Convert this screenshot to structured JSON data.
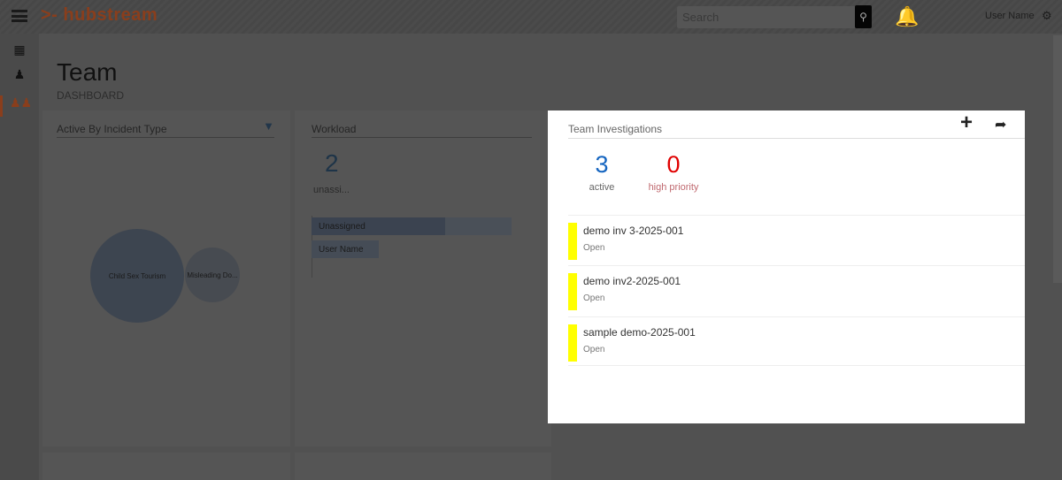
{
  "header": {
    "brand": "hubstream",
    "search_placeholder": "Search",
    "user_name": "User Name"
  },
  "page": {
    "title": "Team",
    "subtitle": "DASHBOARD"
  },
  "incident_panel": {
    "title": "Active By Incident Type",
    "bubbles": [
      {
        "label": "Child Sex Tourism"
      },
      {
        "label": "Misleading Do..."
      }
    ]
  },
  "workload_panel": {
    "title": "Workload",
    "count": "2",
    "count_label": "unassi...",
    "bars": [
      {
        "label": "Unassigned",
        "value": 2
      },
      {
        "label": "User Name",
        "value": 0
      }
    ]
  },
  "modal": {
    "title": "Team Investigations",
    "active_count": "3",
    "active_label": "active",
    "priority_count": "0",
    "priority_label": "high priority",
    "items": [
      {
        "name": "demo inv 3-2025-001",
        "status": "Open"
      },
      {
        "name": "demo inv2-2025-001",
        "status": "Open"
      },
      {
        "name": "sample demo-2025-001",
        "status": "Open"
      }
    ]
  },
  "colors": {
    "brand": "#e8601c",
    "active": "#1565c0",
    "priority": "#e00000",
    "status_bar": "#ffff00"
  }
}
